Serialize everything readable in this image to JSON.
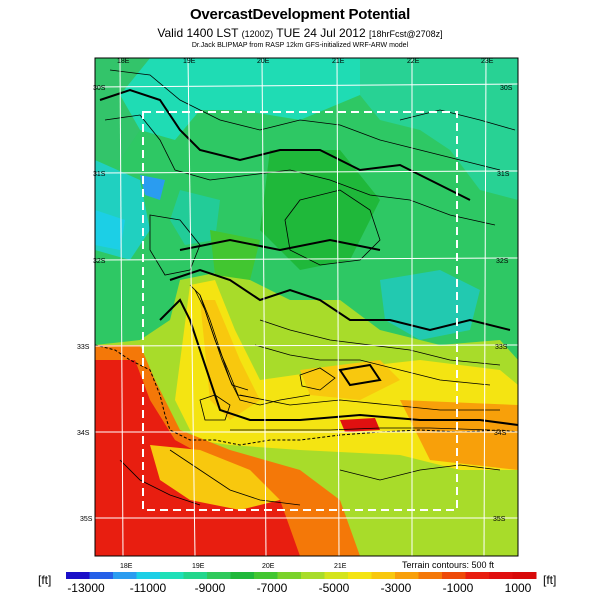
{
  "title": "OvercastDevelopment Potential",
  "subtitle": {
    "main": "Valid 1400 LST",
    "small1": "(1200Z)",
    "main2": "TUE 24 Jul 2012",
    "small2": "[18hrFcst@2708z]"
  },
  "credit": "Dr.Jack BLIPMAP from RASP 12km GFS-initialized WRF-ARW model",
  "map": {
    "top_lon_labels": [
      "18E",
      "19E",
      "20E",
      "21E",
      "22E",
      "23E"
    ],
    "bottom_lon_labels": [
      "18E",
      "19E",
      "20E",
      "21E"
    ],
    "left_lat_labels": [
      "30S",
      "31S",
      "32S",
      "33S",
      "34S",
      "35S"
    ],
    "right_lat_labels": [
      "30S",
      "31S",
      "32S",
      "33S",
      "34S",
      "35S"
    ],
    "terrain_note": "Terrain contours: 500 ft"
  },
  "colorbar": {
    "unit_left": "[ft]",
    "unit_right": "[ft]",
    "tick_labels": [
      "-13000",
      "-11000",
      "-9000",
      "-7000",
      "-5000",
      "-3000",
      "-1000",
      "1000"
    ],
    "colors": [
      "#1a0fc8",
      "#2560e8",
      "#2a9cf0",
      "#1ccfe6",
      "#1ee0b8",
      "#22d68c",
      "#2fc95c",
      "#1fb83a",
      "#42c630",
      "#7ad22b",
      "#a8dc2a",
      "#d4e41c",
      "#f4e412",
      "#f8c80e",
      "#f8a00a",
      "#f47808",
      "#ee4a08",
      "#e81e10",
      "#e01010",
      "#d80a0a"
    ]
  }
}
